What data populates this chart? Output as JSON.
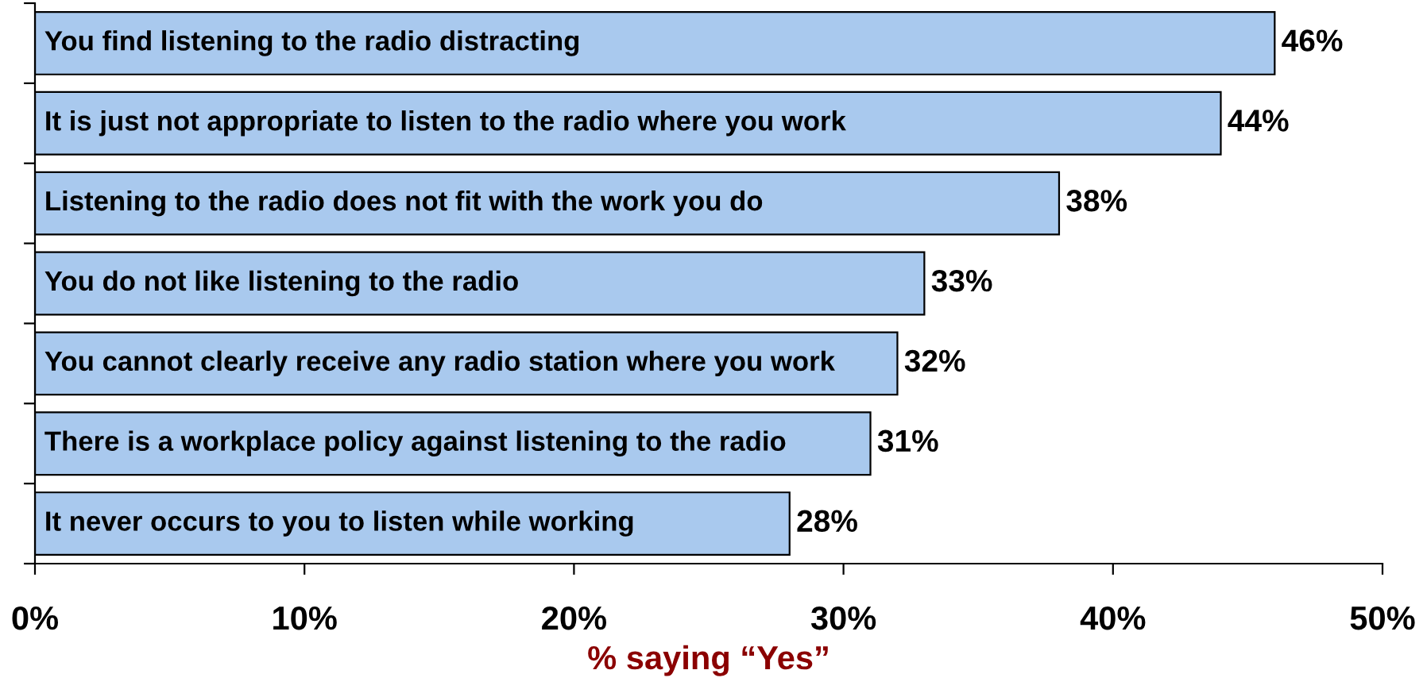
{
  "chart_data": {
    "type": "bar",
    "orientation": "horizontal",
    "xlabel": "% saying “Yes”",
    "categories": [
      "You find listening to the radio distracting",
      "It is just not appropriate to listen to the radio where you work",
      "Listening to the radio does not fit with the work you do",
      "You do not like listening to the radio",
      "You cannot clearly receive any radio station where you work",
      "There is a workplace policy against listening to the radio",
      "It never occurs to you to listen while working"
    ],
    "values": [
      46,
      44,
      38,
      33,
      32,
      31,
      28
    ],
    "value_labels": [
      "46%",
      "44%",
      "38%",
      "33%",
      "32%",
      "31%",
      "28%"
    ],
    "color": "#a9c9ee",
    "xlim": [
      0,
      50
    ],
    "xticks": [
      {
        "value": 0,
        "label": "0%"
      },
      {
        "value": 10,
        "label": "10%"
      },
      {
        "value": 20,
        "label": "20%"
      },
      {
        "value": 30,
        "label": "30%"
      },
      {
        "value": 40,
        "label": "40%"
      },
      {
        "value": 50,
        "label": "50%"
      }
    ],
    "grid": false,
    "legend": false
  }
}
